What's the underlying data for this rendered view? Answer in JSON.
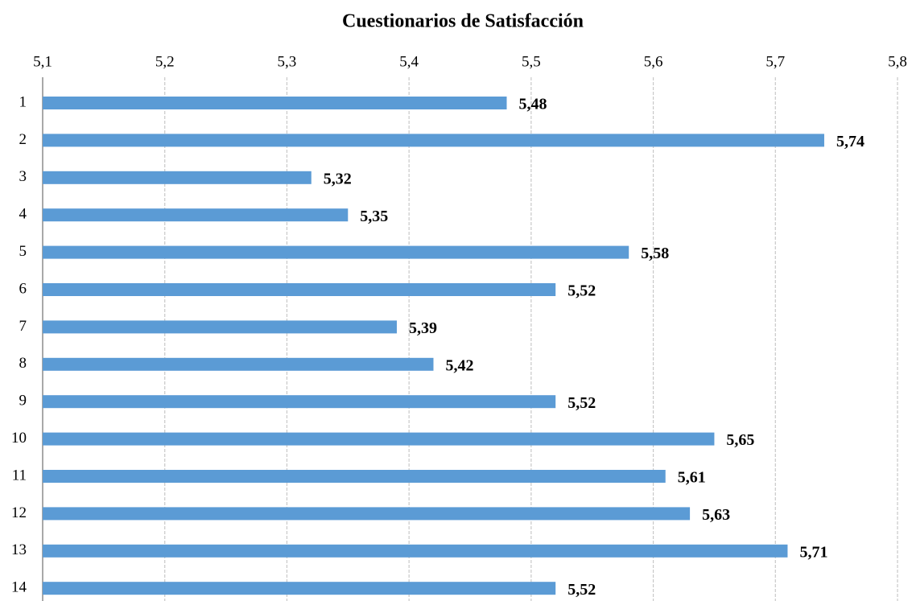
{
  "chart_data": {
    "type": "bar",
    "orientation": "horizontal",
    "title": "Cuestionarios de Satisfacción",
    "categories": [
      "1",
      "2",
      "3",
      "4",
      "5",
      "6",
      "7",
      "8",
      "9",
      "10",
      "11",
      "12",
      "13",
      "14"
    ],
    "values": [
      5.48,
      5.74,
      5.32,
      5.35,
      5.58,
      5.52,
      5.39,
      5.42,
      5.52,
      5.65,
      5.61,
      5.63,
      5.71,
      5.52
    ],
    "value_labels": [
      "5,48",
      "5,74",
      "5,32",
      "5,35",
      "5,58",
      "5,52",
      "5,39",
      "5,42",
      "5,52",
      "5,65",
      "5,61",
      "5,63",
      "5,71",
      "5,52"
    ],
    "color": "#5b9bd5",
    "xlim": [
      5.1,
      5.8
    ],
    "xticks": [
      {
        "value": 5.1,
        "label": "5,1"
      },
      {
        "value": 5.2,
        "label": "5,2"
      },
      {
        "value": 5.3,
        "label": "5,3"
      },
      {
        "value": 5.4,
        "label": "5,4"
      },
      {
        "value": 5.5,
        "label": "5,5"
      },
      {
        "value": 5.6,
        "label": "5,6"
      },
      {
        "value": 5.7,
        "label": "5,7"
      },
      {
        "value": 5.8,
        "label": "5,8"
      }
    ],
    "grid": true
  }
}
